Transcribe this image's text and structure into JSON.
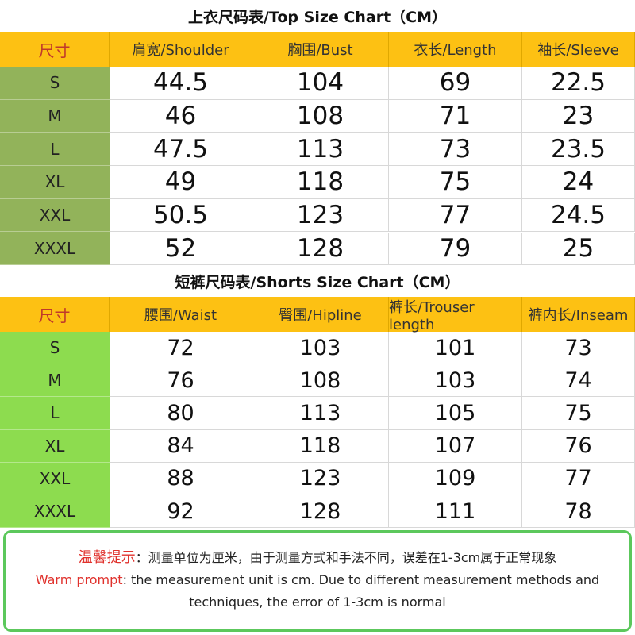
{
  "top": {
    "title": "上衣尺码表/Top Size Chart（CM）",
    "header": [
      "尺寸",
      "肩宽/Shoulder",
      "胸围/Bust",
      "衣长/Length",
      "袖长/Sleeve"
    ],
    "rows": [
      [
        "S",
        44.5,
        104,
        69,
        22.5
      ],
      [
        "M",
        46,
        108,
        71,
        23
      ],
      [
        "L",
        47.5,
        113,
        73,
        23.5
      ],
      [
        "XL",
        49,
        118,
        75,
        24
      ],
      [
        "XXL",
        50.5,
        123,
        77,
        24.5
      ],
      [
        "XXXL",
        52,
        128,
        79,
        25
      ]
    ]
  },
  "shorts": {
    "title": "短裤尺码表/Shorts Size Chart（CM）",
    "header": [
      "尺寸",
      "腰围/Waist",
      "臀围/Hipline",
      "裤长/Trouser length",
      "裤内长/Inseam"
    ],
    "rows": [
      [
        "S",
        72,
        103,
        101,
        73
      ],
      [
        "M",
        76,
        108,
        103,
        74
      ],
      [
        "L",
        80,
        113,
        105,
        75
      ],
      [
        "XL",
        84,
        118,
        107,
        76
      ],
      [
        "XXL",
        88,
        123,
        109,
        77
      ],
      [
        "XXXL",
        92,
        128,
        111,
        78
      ]
    ]
  },
  "note": {
    "label_cn": "温馨提示",
    "text_cn": "：测量单位为厘米，由于测量方式和手法不同，误差在1-3cm属于正常现象",
    "label_en": "Warm prompt",
    "text_en": ": the measurement unit is cm. Due to different measurement methods and techniques, the error of 1-3cm is normal"
  }
}
